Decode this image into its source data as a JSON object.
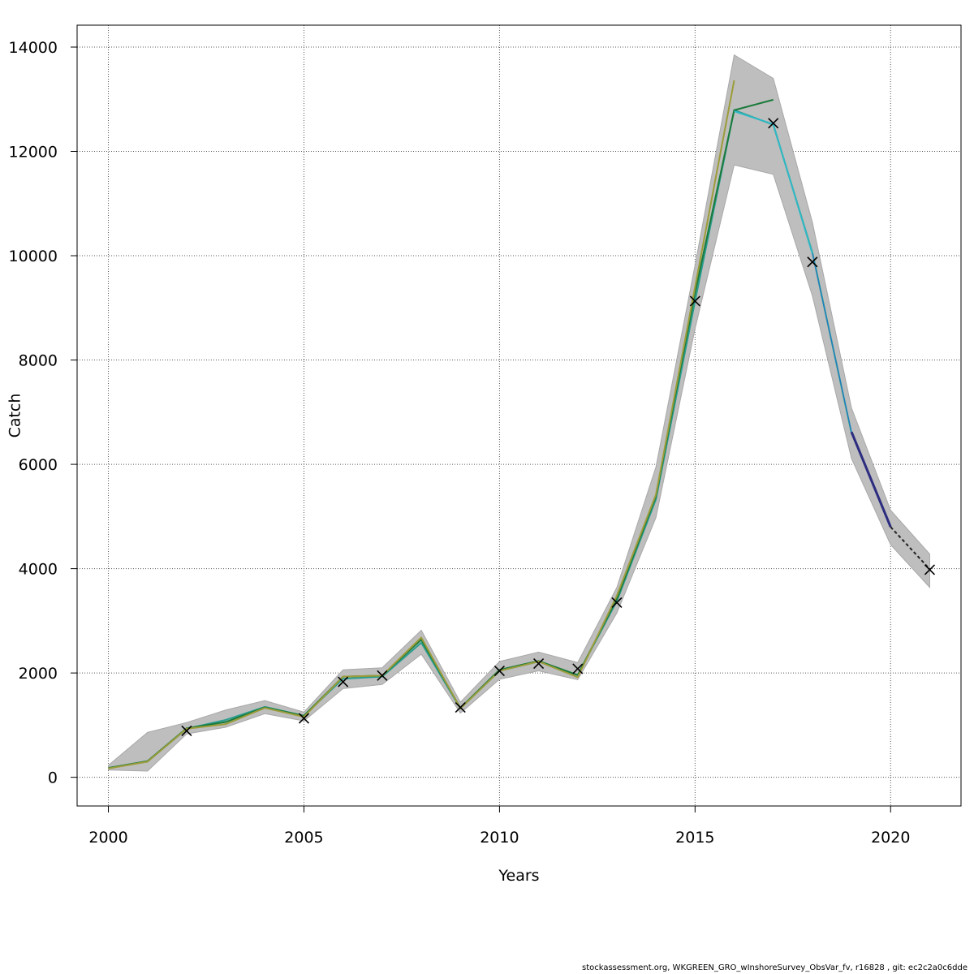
{
  "footer": "stockassessment.org, WKGREEN_GRO_wInshoreSurvey_ObsVar_fv, r16828 , git: ec2c2a0c6dde",
  "chart_data": {
    "type": "line",
    "title": "",
    "xlabel": "Years",
    "ylabel": "Catch",
    "xlim": [
      1999.2,
      2021.8
    ],
    "ylim": [
      -550,
      14420
    ],
    "x_ticks": [
      2000,
      2005,
      2010,
      2015,
      2020
    ],
    "y_ticks": [
      0,
      2000,
      4000,
      6000,
      8000,
      10000,
      12000,
      14000
    ],
    "grid": true,
    "legend": "none",
    "band": {
      "color": "#bebebe",
      "x": [
        2000,
        2001,
        2002,
        2003,
        2004,
        2005,
        2006,
        2007,
        2008,
        2009,
        2010,
        2011,
        2012,
        2013,
        2014,
        2015,
        2016,
        2017,
        2018,
        2019,
        2020,
        2021
      ],
      "upper": [
        230,
        860,
        1050,
        1290,
        1470,
        1250,
        2060,
        2100,
        2820,
        1440,
        2220,
        2400,
        2200,
        3640,
        5950,
        9820,
        13850,
        13400,
        10640,
        7080,
        5120,
        4280
      ],
      "lower": [
        140,
        120,
        830,
        960,
        1220,
        1080,
        1700,
        1780,
        2360,
        1230,
        1880,
        2040,
        1870,
        3150,
        4980,
        8600,
        11740,
        11560,
        9230,
        6110,
        4460,
        3640
      ]
    },
    "series": [
      {
        "color": "#2a9d8f",
        "width": 2,
        "x": [
          2000,
          2001,
          2002,
          2003,
          2004,
          2005,
          2006,
          2007,
          2008,
          2009,
          2010,
          2011,
          2012,
          2013,
          2014,
          2015,
          2016,
          2017,
          2018,
          2019
        ],
        "values": [
          180,
          300,
          930,
          1100,
          1350,
          1180,
          1890,
          1930,
          2580,
          1320,
          2040,
          2220,
          1960,
          3380,
          5330,
          9130,
          12790,
          12510,
          10060,
          6600
        ]
      },
      {
        "color": "#1a7a3a",
        "width": 2,
        "x": [
          2000,
          2001,
          2002,
          2003,
          2004,
          2005,
          2006,
          2007,
          2008,
          2009,
          2010,
          2011,
          2012,
          2013,
          2014,
          2015,
          2016,
          2017
        ],
        "values": [
          180,
          310,
          940,
          1060,
          1340,
          1180,
          1930,
          1950,
          2640,
          1330,
          2060,
          2230,
          1960,
          3420,
          5390,
          9290,
          12790,
          12990
        ]
      },
      {
        "color": "#9c9c3a",
        "width": 2,
        "x": [
          2000,
          2001,
          2002,
          2003,
          2004,
          2005,
          2006,
          2007,
          2008,
          2009,
          2010,
          2011,
          2012,
          2013,
          2014,
          2015,
          2016
        ],
        "values": [
          170,
          300,
          930,
          1020,
          1330,
          1160,
          1930,
          1950,
          2680,
          1320,
          2040,
          2220,
          1920,
          3480,
          5420,
          9400,
          13360
        ]
      },
      {
        "color": "#2fb8c4",
        "width": 2,
        "x": [
          2016,
          2017,
          2018
        ],
        "values": [
          12770,
          12520,
          10040
        ]
      },
      {
        "color": "#1f77d0",
        "width": 1,
        "x": [
          2018,
          2019
        ],
        "values": [
          10040,
          6620
        ]
      },
      {
        "color": "#2c2c80",
        "width": 3,
        "x": [
          2019,
          2020
        ],
        "values": [
          6620,
          4800
        ]
      },
      {
        "color": "#222222",
        "width": 2,
        "dash": "4 3",
        "x": [
          2020,
          2021
        ],
        "values": [
          4800,
          3990
        ]
      }
    ],
    "observations": {
      "marker": "x",
      "x": [
        2002,
        2005,
        2006,
        2007,
        2009,
        2010,
        2011,
        2012,
        2013,
        2015,
        2017,
        2018,
        2021
      ],
      "values": [
        890,
        1130,
        1830,
        1950,
        1340,
        2040,
        2180,
        2080,
        3350,
        9130,
        12540,
        9880,
        3980
      ]
    }
  }
}
